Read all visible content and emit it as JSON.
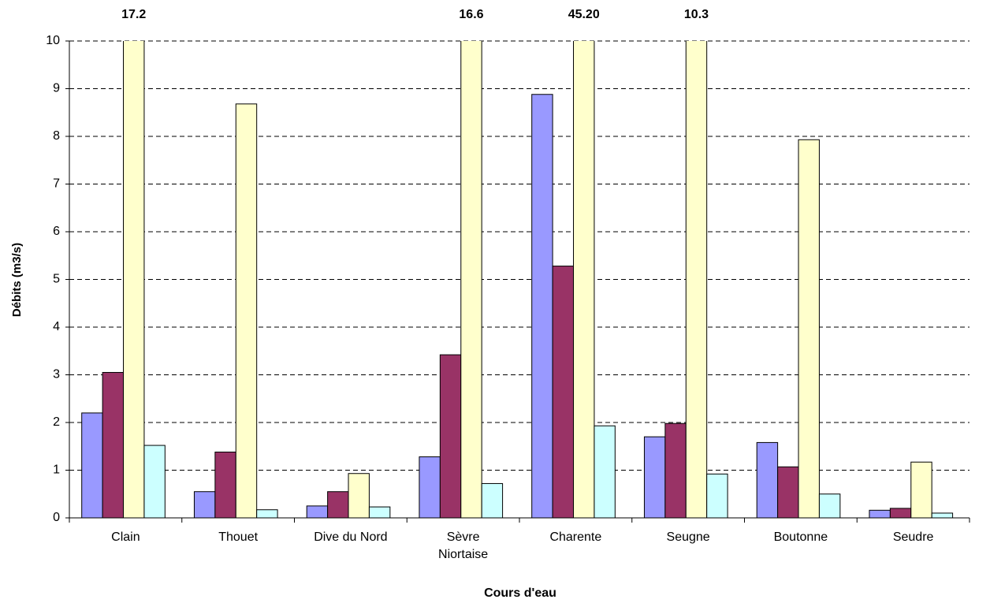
{
  "chart_data": {
    "type": "bar",
    "x_label": "Cours d'eau",
    "y_label": "Débits (m3/s)",
    "categories": [
      "Clain",
      "Thouet",
      "Dive du Nord",
      "Sèvre\nNiortaise",
      "Charente",
      "Seugne",
      "Boutonne",
      "Seudre"
    ],
    "series": [
      {
        "color": "#9999ff",
        "values": [
          2.2,
          0.55,
          0.25,
          1.28,
          8.88,
          1.7,
          1.58,
          0.16
        ]
      },
      {
        "color": "#993366",
        "values": [
          3.05,
          1.38,
          0.55,
          3.42,
          5.28,
          1.98,
          1.07,
          0.2
        ]
      },
      {
        "color": "#ffffcc",
        "values": [
          17.2,
          8.68,
          0.93,
          16.6,
          45.2,
          10.3,
          7.93,
          1.17
        ],
        "value_labels": [
          "17.2",
          null,
          null,
          "16.6",
          "45.20",
          "10.3",
          null,
          null
        ]
      },
      {
        "color": "#ccffff",
        "values": [
          1.52,
          0.17,
          0.23,
          0.72,
          1.93,
          0.92,
          0.5,
          0.1
        ]
      }
    ],
    "ylim": [
      0,
      10
    ],
    "yticks": [
      0,
      1,
      2,
      3,
      4,
      5,
      6,
      7,
      8,
      9,
      10
    ],
    "grid": true
  }
}
